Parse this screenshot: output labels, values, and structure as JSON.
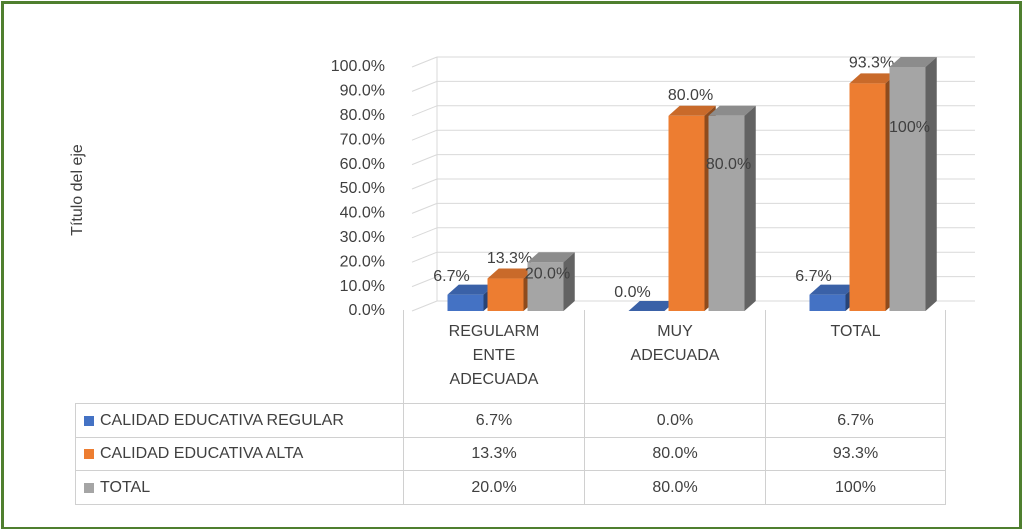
{
  "chart_data": {
    "type": "bar3d",
    "y_axis_label": "Título del eje",
    "categories": [
      "REGULARMENTE ADECUADA",
      "MUY ADECUADA",
      "TOTAL"
    ],
    "series": [
      {
        "name": "CALIDAD EDUCATIVA REGULAR",
        "color": "#4472c4",
        "values": [
          6.7,
          0.0,
          6.7
        ],
        "value_labels": [
          "6.7%",
          "0.0%",
          "6.7%"
        ]
      },
      {
        "name": "CALIDAD EDUCATIVA ALTA",
        "color": "#ed7d31",
        "values": [
          13.3,
          80.0,
          93.3
        ],
        "value_labels": [
          "13.3%",
          "80.0%",
          "93.3%"
        ]
      },
      {
        "name": "TOTAL",
        "color": "#a5a5a5",
        "values": [
          20.0,
          80.0,
          100
        ],
        "value_labels": [
          "20.0%",
          "80.0%",
          "100%"
        ]
      }
    ],
    "ylim": [
      0,
      100
    ],
    "yticks": [
      {
        "value": 0,
        "label": "0.0%"
      },
      {
        "value": 10,
        "label": "10.0%"
      },
      {
        "value": 20,
        "label": "20.0%"
      },
      {
        "value": 30,
        "label": "30.0%"
      },
      {
        "value": 40,
        "label": "40.0%"
      },
      {
        "value": 50,
        "label": "50.0%"
      },
      {
        "value": 60,
        "label": "60.0%"
      },
      {
        "value": 70,
        "label": "70.0%"
      },
      {
        "value": 80,
        "label": "80.0%"
      },
      {
        "value": 90,
        "label": "90.0%"
      },
      {
        "value": 100,
        "label": "100.0%"
      }
    ],
    "grid": true,
    "data_table": true
  }
}
